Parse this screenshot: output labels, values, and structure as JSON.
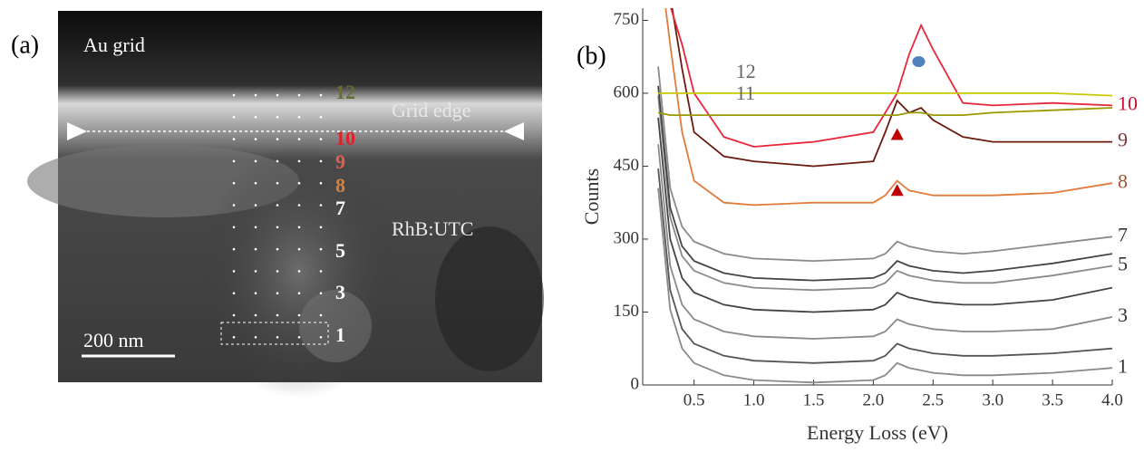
{
  "panel_a": {
    "panel_label": "(a)",
    "region_labels": [
      "Au grid",
      "Grid edge",
      "RhB:UTC"
    ],
    "scale_bar": "200 nm",
    "point_labels": [
      {
        "text": "12",
        "color": "#6b6b3a"
      },
      {
        "text": "10",
        "color": "#e0202a"
      },
      {
        "text": "9",
        "color": "#e0604a"
      },
      {
        "text": "8",
        "color": "#d9803a"
      },
      {
        "text": "7",
        "color": "#ffffff"
      },
      {
        "text": "5",
        "color": "#ffffff"
      },
      {
        "text": "3",
        "color": "#ffffff"
      },
      {
        "text": "1",
        "color": "#ffffff"
      }
    ]
  },
  "chart_data": {
    "type": "line",
    "panel_label": "(b)",
    "x_label": "Energy Loss (eV)",
    "y_label": "Counts",
    "xlim": [
      0.07,
      4.0
    ],
    "ylim": [
      0,
      775
    ],
    "xticks": [
      0.5,
      {
        "value": 1,
        "label": "1.0"
      },
      1.5,
      {
        "value": 2,
        "label": "2.0"
      },
      2.5,
      {
        "value": 3,
        "label": "3.0"
      },
      3.5,
      {
        "value": 4,
        "label": "4.0"
      }
    ],
    "yticks": [
      0,
      150,
      300,
      450,
      600,
      750
    ],
    "x": [
      0.2,
      0.3,
      0.4,
      0.5,
      0.75,
      1.0,
      1.5,
      2.0,
      2.1,
      2.2,
      2.3,
      2.4,
      2.5,
      2.75,
      3.0,
      3.5,
      4.0
    ],
    "series": [
      {
        "name": "1",
        "color": "#8a8a8a",
        "label_color": "#333333",
        "values": [
          405,
          155,
          75,
          45,
          20,
          10,
          5,
          10,
          20,
          45,
          35,
          30,
          25,
          20,
          20,
          25,
          35
        ]
      },
      {
        "color": "#555555",
        "values": [
          445,
          195,
          115,
          85,
          60,
          50,
          45,
          50,
          60,
          85,
          75,
          70,
          65,
          60,
          60,
          65,
          75
        ]
      },
      {
        "name": "3",
        "color": "#8a8a8a",
        "label_color": "#333333",
        "values": [
          495,
          245,
          165,
          135,
          110,
          100,
          95,
          100,
          110,
          135,
          125,
          120,
          115,
          110,
          110,
          115,
          140
        ]
      },
      {
        "color": "#444444",
        "values": [
          550,
          300,
          220,
          190,
          165,
          155,
          150,
          155,
          165,
          190,
          180,
          175,
          170,
          165,
          165,
          175,
          200
        ]
      },
      {
        "name": "5",
        "color": "#8a8a8a",
        "label_color": "#333333",
        "values": [
          595,
          345,
          265,
          235,
          210,
          200,
          195,
          200,
          210,
          235,
          225,
          220,
          215,
          210,
          210,
          225,
          245
        ]
      },
      {
        "color": "#444444",
        "values": [
          615,
          365,
          285,
          255,
          230,
          220,
          215,
          220,
          230,
          255,
          245,
          240,
          235,
          230,
          235,
          250,
          270
        ]
      },
      {
        "name": "7",
        "color": "#8a8a8a",
        "label_color": "#333333",
        "values": [
          655,
          405,
          325,
          295,
          270,
          260,
          255,
          260,
          270,
          295,
          285,
          280,
          275,
          270,
          275,
          290,
          305
        ]
      },
      {
        "name": "8",
        "color": "#e07b39",
        "label_color": "#a0522d",
        "values": [
          900,
          700,
          520,
          420,
          375,
          370,
          375,
          375,
          390,
          420,
          400,
          395,
          390,
          390,
          390,
          395,
          415
        ]
      },
      {
        "name": "9",
        "color": "#6b1a0e",
        "label_color": "#7a3a3a",
        "values": [
          900,
          800,
          650,
          520,
          470,
          460,
          450,
          460,
          520,
          585,
          560,
          570,
          545,
          510,
          500,
          500,
          500
        ]
      },
      {
        "name": "10",
        "color": "#e8263a",
        "label_color": "#c8102e",
        "values": [
          900,
          780,
          700,
          600,
          510,
          490,
          500,
          520,
          560,
          600,
          680,
          740,
          690,
          580,
          575,
          580,
          575
        ]
      },
      {
        "name": "11",
        "color": "#9a9a00",
        "label_color": "#666666",
        "label_at": 0.85,
        "values": [
          560,
          555,
          555,
          555,
          555,
          555,
          555,
          555,
          555,
          555,
          560,
          560,
          555,
          555,
          560,
          565,
          570
        ]
      },
      {
        "name": "12",
        "color": "#c8c800",
        "label_color": "#666666",
        "label_at": 0.85,
        "values": [
          600,
          600,
          600,
          600,
          600,
          600,
          600,
          600,
          600,
          600,
          600,
          600,
          600,
          600,
          600,
          600,
          595
        ]
      }
    ],
    "markers": [
      {
        "x": 2.2,
        "y": 515,
        "shape": "triangle",
        "color": "#c00000"
      },
      {
        "x": 2.2,
        "y": 400,
        "shape": "triangle",
        "color": "#c00000"
      },
      {
        "x": 2.38,
        "y": 665,
        "shape": "circle",
        "color": "#4f81bd"
      }
    ]
  }
}
